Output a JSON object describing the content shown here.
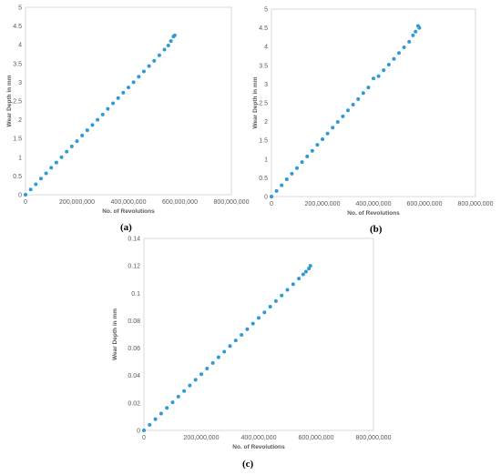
{
  "chart_data": [
    {
      "type": "scatter",
      "panel_label": "(a)",
      "xlabel": "No. of Revolutions",
      "ylabel": "Wear Depth in mm",
      "xlim": [
        0,
        800000000
      ],
      "ylim": [
        0,
        5
      ],
      "xticks": [
        "0",
        "200,000,000",
        "400,000,000",
        "600,000,000",
        "800,000,000"
      ],
      "yticks": [
        "0",
        "0.5",
        "1",
        "1.5",
        "2",
        "2.5",
        "3",
        "3.5",
        "4",
        "4.5",
        "5"
      ],
      "grid": false,
      "legend": "none",
      "marker_color": "#2e9bd6",
      "series": [
        {
          "x": [
            0,
            20000000,
            40000000,
            60000000,
            80000000,
            100000000,
            120000000,
            140000000,
            160000000,
            180000000,
            200000000,
            220000000,
            240000000,
            260000000,
            280000000,
            300000000,
            320000000,
            340000000,
            360000000,
            380000000,
            400000000,
            420000000,
            440000000,
            460000000,
            480000000,
            500000000,
            520000000,
            540000000,
            555000000,
            565000000,
            575000000,
            580000000
          ],
          "y": [
            0,
            0.14,
            0.28,
            0.43,
            0.57,
            0.72,
            0.86,
            1.0,
            1.15,
            1.29,
            1.43,
            1.58,
            1.72,
            1.86,
            2.0,
            2.14,
            2.29,
            2.44,
            2.58,
            2.72,
            2.86,
            3.0,
            3.15,
            3.29,
            3.43,
            3.57,
            3.72,
            3.87,
            3.98,
            4.1,
            4.22,
            4.25
          ]
        }
      ]
    },
    {
      "type": "scatter",
      "panel_label": "(b)",
      "xlabel": "No. of Revolutions",
      "ylabel": "Wear Depth in mm",
      "xlim": [
        0,
        800000000
      ],
      "ylim": [
        0,
        5
      ],
      "xticks": [
        "0",
        "200,000,000",
        "400,000,000",
        "600,000,000",
        "800,000,000"
      ],
      "yticks": [
        "0",
        "0.5",
        "1",
        "1.5",
        "2",
        "2.5",
        "3",
        "3.5",
        "4",
        "4.5",
        "5"
      ],
      "grid": false,
      "legend": "none",
      "marker_color": "#2e9bd6",
      "series": [
        {
          "x": [
            0,
            20000000,
            40000000,
            60000000,
            80000000,
            100000000,
            120000000,
            140000000,
            160000000,
            180000000,
            200000000,
            220000000,
            240000000,
            260000000,
            280000000,
            300000000,
            320000000,
            340000000,
            360000000,
            380000000,
            400000000,
            420000000,
            440000000,
            460000000,
            480000000,
            500000000,
            520000000,
            540000000,
            555000000,
            565000000,
            575000000,
            580000000
          ],
          "y": [
            0,
            0.15,
            0.3,
            0.46,
            0.61,
            0.76,
            0.92,
            1.07,
            1.22,
            1.38,
            1.53,
            1.68,
            1.84,
            1.99,
            2.14,
            2.3,
            2.45,
            2.6,
            2.76,
            2.91,
            3.15,
            3.21,
            3.37,
            3.52,
            3.67,
            3.83,
            3.98,
            4.13,
            4.3,
            4.4,
            4.55,
            4.5
          ]
        }
      ]
    },
    {
      "type": "scatter",
      "panel_label": "(c)",
      "xlabel": "No. of Revolutions",
      "ylabel": "Wear Depth in mm",
      "xlim": [
        0,
        800000000
      ],
      "ylim": [
        0,
        0.14
      ],
      "xticks": [
        "0",
        "200,000,000",
        "400,000,000",
        "600,000,000",
        "800,000,000"
      ],
      "yticks": [
        "0",
        "0.02",
        "0.04",
        "0.06",
        "0.08",
        "0.1",
        "0.12",
        "0.14"
      ],
      "grid": false,
      "legend": "none",
      "marker_color": "#2e9bd6",
      "series": [
        {
          "x": [
            0,
            20000000,
            40000000,
            60000000,
            80000000,
            100000000,
            120000000,
            140000000,
            160000000,
            180000000,
            200000000,
            220000000,
            240000000,
            260000000,
            280000000,
            300000000,
            320000000,
            340000000,
            360000000,
            380000000,
            400000000,
            420000000,
            440000000,
            460000000,
            480000000,
            500000000,
            520000000,
            540000000,
            555000000,
            565000000,
            575000000,
            580000000
          ],
          "y": [
            0,
            0.0041,
            0.0082,
            0.0123,
            0.0164,
            0.0205,
            0.0246,
            0.0287,
            0.0328,
            0.0369,
            0.041,
            0.0451,
            0.0492,
            0.0533,
            0.0574,
            0.0615,
            0.0656,
            0.0697,
            0.0738,
            0.0779,
            0.082,
            0.0861,
            0.0902,
            0.0943,
            0.0984,
            0.1025,
            0.1066,
            0.1107,
            0.1138,
            0.1158,
            0.118,
            0.12
          ]
        }
      ]
    }
  ]
}
